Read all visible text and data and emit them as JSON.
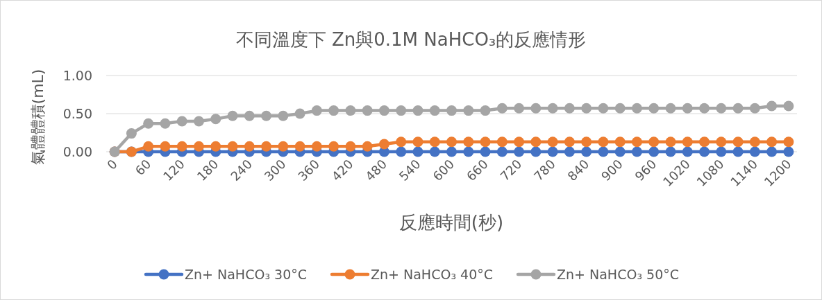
{
  "chart_data": {
    "type": "line",
    "title": "不同溫度下 Zn與0.1M NaHCO₃的反應情形",
    "xlabel": "反應時間(秒)",
    "ylabel": "氣體體積(mL)",
    "categories": [
      "0",
      null,
      "60",
      null,
      "120",
      null,
      "180",
      null,
      "240",
      null,
      "300",
      null,
      "360",
      null,
      "420",
      null,
      "480",
      null,
      "540",
      null,
      "600",
      null,
      "660",
      null,
      "720",
      null,
      "780",
      null,
      "840",
      null,
      "900",
      null,
      "960",
      null,
      "1020",
      null,
      "1080",
      null,
      "1140",
      null,
      "1200"
    ],
    "series": [
      {
        "name": "Zn+ NaHCO₃ 30°C",
        "color": "#4472c4",
        "values": [
          0,
          0,
          0,
          0,
          0,
          0,
          0,
          0,
          0,
          0,
          0,
          0,
          0,
          0,
          0,
          0,
          0,
          0,
          0,
          0,
          0,
          0,
          0,
          0,
          0,
          0,
          0,
          0,
          0,
          0,
          0,
          0,
          0,
          0,
          0,
          0,
          0,
          0,
          0,
          0,
          0
        ]
      },
      {
        "name": "Zn+ NaHCO₃ 40°C",
        "color": "#ed7d31",
        "values": [
          0,
          0,
          0.07,
          0.07,
          0.07,
          0.07,
          0.07,
          0.07,
          0.07,
          0.07,
          0.07,
          0.07,
          0.07,
          0.07,
          0.07,
          0.07,
          0.1,
          0.13,
          0.13,
          0.13,
          0.13,
          0.13,
          0.13,
          0.13,
          0.13,
          0.13,
          0.13,
          0.13,
          0.13,
          0.13,
          0.13,
          0.13,
          0.13,
          0.13,
          0.13,
          0.13,
          0.13,
          0.13,
          0.13,
          0.13,
          0.13
        ]
      },
      {
        "name": "Zn+ NaHCO₃ 50°C",
        "color": "#a5a5a5",
        "values": [
          0,
          0.24,
          0.37,
          0.37,
          0.4,
          0.4,
          0.43,
          0.47,
          0.47,
          0.47,
          0.47,
          0.5,
          0.54,
          0.54,
          0.54,
          0.54,
          0.54,
          0.54,
          0.54,
          0.54,
          0.54,
          0.54,
          0.54,
          0.57,
          0.57,
          0.57,
          0.57,
          0.57,
          0.57,
          0.57,
          0.57,
          0.57,
          0.57,
          0.57,
          0.57,
          0.57,
          0.57,
          0.57,
          0.57,
          0.6,
          0.6
        ]
      }
    ],
    "ylim": [
      0,
      1
    ],
    "yticks": [
      {
        "value": 0,
        "label": "0.00"
      },
      {
        "value": 0.5,
        "label": "0.50"
      },
      {
        "value": 1,
        "label": "1.00"
      }
    ],
    "grid": "y",
    "legend": "bottom",
    "marker": "circle",
    "line_style": "solid"
  }
}
